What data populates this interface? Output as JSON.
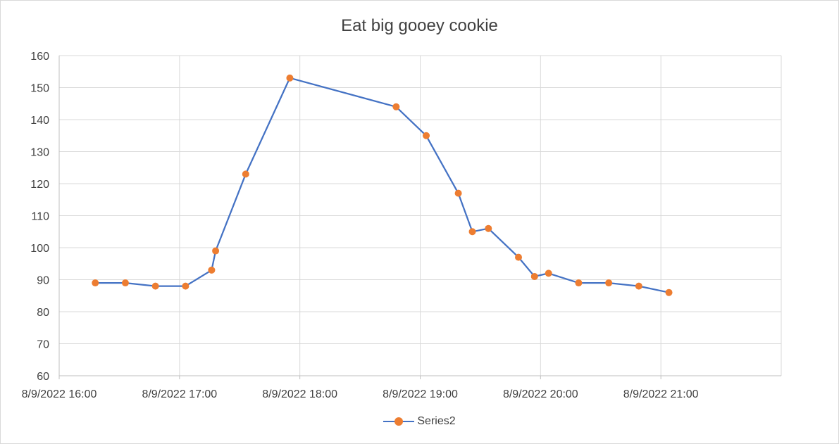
{
  "chart_data": {
    "type": "scatter",
    "title": "Eat big gooey cookie",
    "x_type": "datetime",
    "x_format": "M/D/YYYY HH:MM",
    "xlim": [
      "8/9/2022 16:00",
      "8/9/2022 22:00"
    ],
    "x_ticks": [
      "8/9/2022 16:00",
      "8/9/2022 17:00",
      "8/9/2022 18:00",
      "8/9/2022 19:00",
      "8/9/2022 20:00",
      "8/9/2022 21:00"
    ],
    "ylim": [
      60,
      160
    ],
    "y_ticks": [
      60,
      70,
      80,
      90,
      100,
      110,
      120,
      130,
      140,
      150,
      160
    ],
    "grid": true,
    "legend": "bottom",
    "series": [
      {
        "name": "Series2",
        "line_color": "#4472c4",
        "marker_color": "#ed7d31",
        "x": [
          "8/9/2022 16:18",
          "8/9/2022 16:33",
          "8/9/2022 16:48",
          "8/9/2022 17:03",
          "8/9/2022 17:16",
          "8/9/2022 17:18",
          "8/9/2022 17:33",
          "8/9/2022 17:55",
          "8/9/2022 18:48",
          "8/9/2022 19:03",
          "8/9/2022 19:19",
          "8/9/2022 19:26",
          "8/9/2022 19:34",
          "8/9/2022 19:49",
          "8/9/2022 19:57",
          "8/9/2022 20:04",
          "8/9/2022 20:19",
          "8/9/2022 20:34",
          "8/9/2022 20:49",
          "8/9/2022 21:04"
        ],
        "y": [
          89,
          89,
          88,
          88,
          93,
          99,
          123,
          153,
          144,
          135,
          117,
          105,
          106,
          97,
          91,
          92,
          89,
          89,
          88,
          86
        ]
      }
    ]
  }
}
